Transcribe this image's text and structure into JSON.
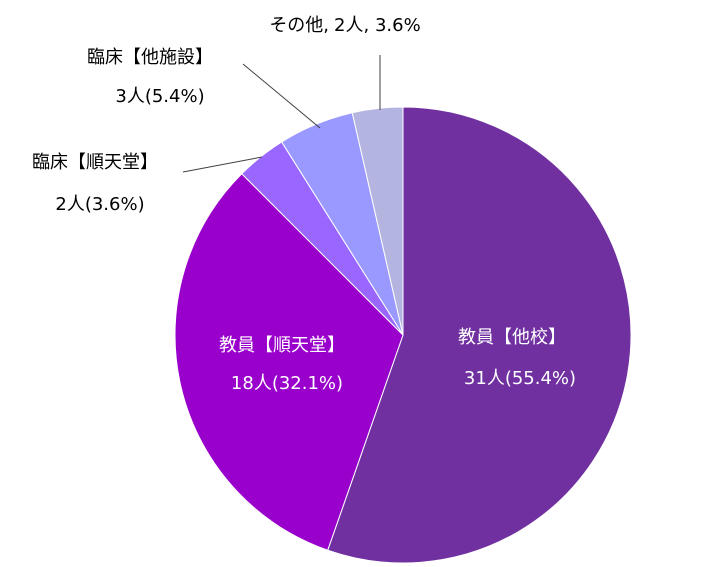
{
  "chart_data": {
    "type": "pie",
    "categories": [
      "教員【他校】",
      "教員【順天堂】",
      "臨床【順天堂】",
      "臨床【他施設】",
      "その他,"
    ],
    "values": [
      31,
      18,
      2,
      3,
      2
    ],
    "value_labels": [
      "31人(55.4%)",
      "18人(32.1%)",
      "2人(3.6%)",
      "3人(5.4%)",
      "2人, 3.6%"
    ],
    "colors": [
      "#7030a0",
      "#9900cc",
      "#9966ff",
      "#9999ff",
      "#b4b4e0"
    ]
  }
}
